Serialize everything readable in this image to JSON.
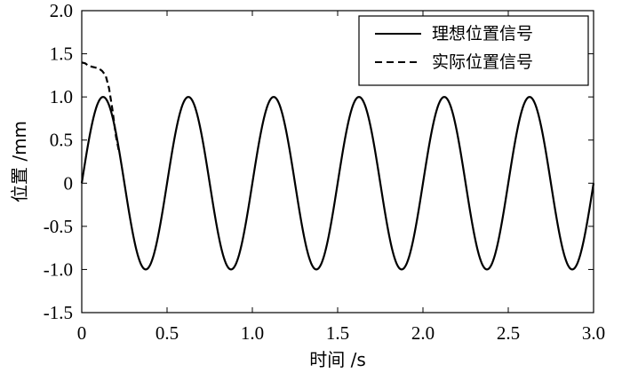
{
  "chart_data": {
    "type": "line",
    "xlabel": "时间 /s",
    "ylabel": "位置 /mm",
    "xlim": [
      0,
      3.0
    ],
    "ylim": [
      -1.5,
      2.0
    ],
    "x_ticks": [
      0,
      0.5,
      1.0,
      1.5,
      2.0,
      2.5,
      3.0
    ],
    "x_tick_labels": [
      "0",
      "0.5",
      "1.0",
      "1.5",
      "2.0",
      "2.5",
      "3.0"
    ],
    "y_ticks": [
      2.0,
      1.5,
      1.0,
      0.5,
      0,
      -0.5,
      -1.0,
      -1.5
    ],
    "y_tick_labels": [
      "2.0",
      "1.5",
      "1.0",
      "0.5",
      "0",
      "-0.5",
      "-1.0",
      "-1.5"
    ],
    "grid": false,
    "legend_position": "top-right",
    "series": [
      {
        "name": "理想位置信号",
        "line_style": "solid",
        "color": "#000000",
        "x": [
          0,
          0.0625,
          0.125,
          0.1875,
          0.25,
          0.3125,
          0.375,
          0.4375,
          0.5,
          0.5625,
          0.625,
          0.6875,
          0.75,
          0.8125,
          0.875,
          0.9375,
          1.0,
          1.0625,
          1.125,
          1.1875,
          1.25,
          1.3125,
          1.375,
          1.4375,
          1.5,
          1.5625,
          1.625,
          1.6875,
          1.75,
          1.8125,
          1.875,
          1.9375,
          2.0,
          2.0625,
          2.125,
          2.1875,
          2.25,
          2.3125,
          2.375,
          2.4375,
          2.5,
          2.5625,
          2.625,
          2.6875,
          2.75,
          2.8125,
          2.875,
          2.9375,
          3.0
        ],
        "y": [
          0,
          0.71,
          1.0,
          0.71,
          0,
          -0.71,
          -1.0,
          -0.71,
          0,
          0.71,
          1.0,
          0.71,
          0,
          -0.71,
          -1.0,
          -0.71,
          0,
          0.71,
          1.0,
          0.71,
          0,
          -0.71,
          -1.0,
          -0.71,
          0,
          0.71,
          1.0,
          0.71,
          0,
          -0.71,
          -1.0,
          -0.71,
          0,
          0.71,
          1.0,
          0.71,
          0,
          -0.71,
          -1.0,
          -0.71,
          0,
          0.71,
          1.0,
          0.71,
          0,
          -0.71,
          -1.0,
          -0.71,
          0
        ]
      },
      {
        "name": "实际位置信号",
        "line_style": "dashed",
        "color": "#000000",
        "x": [
          0,
          0.02,
          0.04,
          0.06,
          0.08,
          0.1,
          0.12,
          0.14,
          0.16,
          0.18,
          0.2,
          0.22
        ],
        "y": [
          1.4,
          1.39,
          1.36,
          1.35,
          1.34,
          1.33,
          1.3,
          1.25,
          1.1,
          0.85,
          0.55,
          0.35
        ]
      }
    ]
  }
}
